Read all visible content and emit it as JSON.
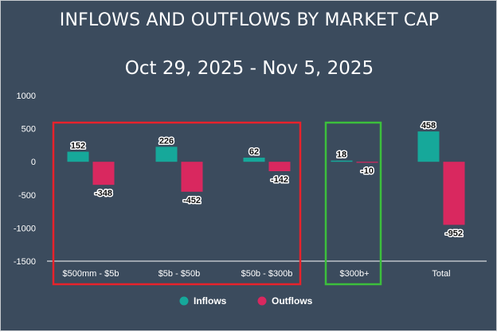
{
  "header": {
    "title": "INFLOWS AND OUTFLOWS BY MARKET CAP",
    "subtitle": "Oct 29, 2025 - Nov 5, 2025"
  },
  "chart_data": {
    "type": "bar",
    "categories": [
      "$500mm - $5b",
      "$5b - $50b",
      "$50b - $300b",
      "$300b+",
      "Total"
    ],
    "series": [
      {
        "name": "Inflows",
        "color": "#16a89a",
        "values": [
          152,
          226,
          62,
          18,
          458
        ]
      },
      {
        "name": "Outflows",
        "color": "#d9285f",
        "values": [
          -348,
          -452,
          -142,
          -10,
          -952
        ]
      }
    ],
    "ylim": [
      -1500,
      1000
    ],
    "yticks": [
      1000,
      500,
      0,
      -500,
      -1000,
      -1500
    ],
    "grid": false,
    "legend": "bottom",
    "highlight_boxes": [
      {
        "color": "#e8222b",
        "categories": [
          "$500mm - $5b",
          "$5b - $50b",
          "$50b - $300b"
        ]
      },
      {
        "color": "#3cbf3c",
        "categories": [
          "$300b+"
        ]
      }
    ]
  },
  "colors": {
    "background": "#3b4b5d",
    "text": "#ffffff"
  }
}
